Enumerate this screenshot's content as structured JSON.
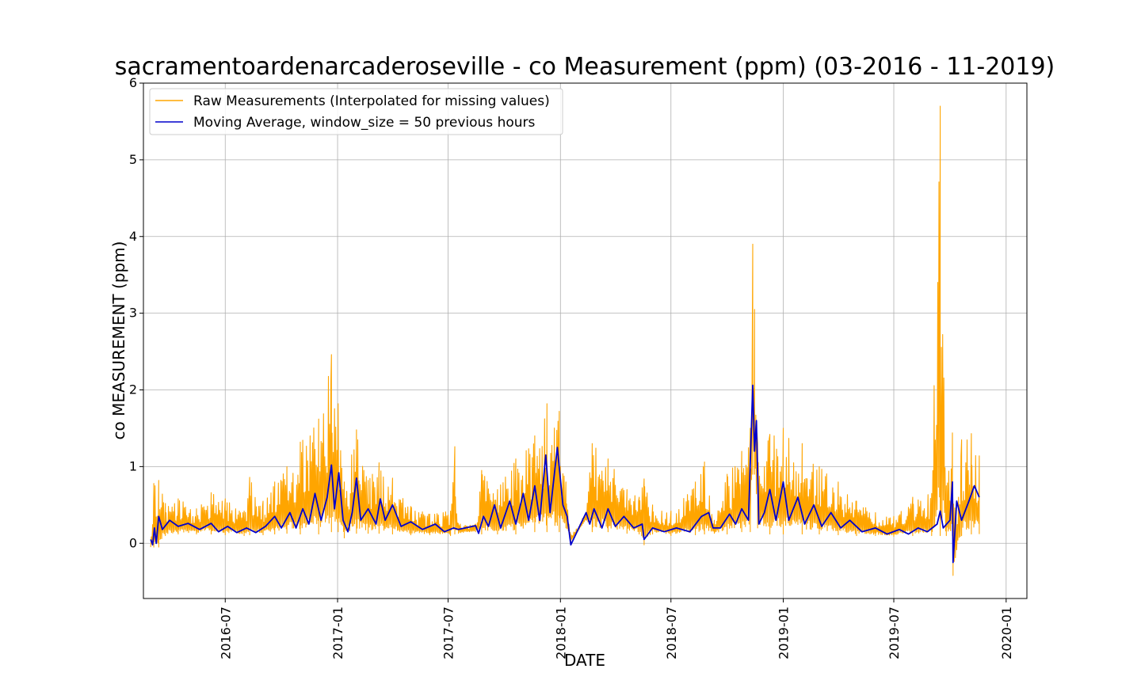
{
  "chart_data": {
    "type": "line",
    "title": "sacramentoardenarcaderoseville - co Measurement (ppm) (03-2016 - 11-2019)",
    "xlabel": "DATE",
    "ylabel": "co MEASUREMENT (ppm)",
    "xlim": [
      "2016-02-18",
      "2020-02-04"
    ],
    "ylim": [
      -0.72,
      6.0
    ],
    "x_ticks": [
      "2016-07",
      "2017-01",
      "2017-07",
      "2018-01",
      "2018-07",
      "2019-01",
      "2019-07",
      "2020-01"
    ],
    "y_ticks": [
      "0",
      "1",
      "2",
      "3",
      "4",
      "5",
      "6"
    ],
    "y_tick_values": [
      0,
      1,
      2,
      3,
      4,
      5,
      6
    ],
    "grid": true,
    "legend_position": "top-left",
    "series": [
      {
        "name": "Raw Measurements (Interpolated for missing values)",
        "color": "#FFA500",
        "envelope": [
          {
            "x": "2016-03-01",
            "low": -0.05,
            "high": 0.1
          },
          {
            "x": "2016-03-06",
            "low": -0.05,
            "high": 0.78
          },
          {
            "x": "2016-03-14",
            "low": -0.05,
            "high": 0.82
          },
          {
            "x": "2016-03-25",
            "low": 0.1,
            "high": 0.52
          },
          {
            "x": "2016-04-15",
            "low": 0.12,
            "high": 0.58
          },
          {
            "x": "2016-05-15",
            "low": 0.12,
            "high": 0.45
          },
          {
            "x": "2016-06-08",
            "low": 0.12,
            "high": 0.66
          },
          {
            "x": "2016-07-01",
            "low": 0.11,
            "high": 0.58
          },
          {
            "x": "2016-08-01",
            "low": 0.1,
            "high": 0.42
          },
          {
            "x": "2016-08-10",
            "low": 0.11,
            "high": 0.86
          },
          {
            "x": "2016-09-01",
            "low": 0.11,
            "high": 0.55
          },
          {
            "x": "2016-09-20",
            "low": 0.12,
            "high": 0.8
          },
          {
            "x": "2016-10-10",
            "low": 0.13,
            "high": 1.0
          },
          {
            "x": "2016-11-01",
            "low": 0.12,
            "high": 1.32
          },
          {
            "x": "2016-12-01",
            "low": 0.12,
            "high": 1.62
          },
          {
            "x": "2016-12-22",
            "low": 0.15,
            "high": 2.46
          },
          {
            "x": "2017-01-02",
            "low": 0.15,
            "high": 1.82
          },
          {
            "x": "2017-01-12",
            "low": 0.07,
            "high": 0.8
          },
          {
            "x": "2017-02-01",
            "low": 0.13,
            "high": 1.48
          },
          {
            "x": "2017-02-20",
            "low": 0.13,
            "high": 0.82
          },
          {
            "x": "2017-03-10",
            "low": 0.13,
            "high": 1.05
          },
          {
            "x": "2017-04-01",
            "low": 0.12,
            "high": 0.85
          },
          {
            "x": "2017-05-01",
            "low": 0.11,
            "high": 0.48
          },
          {
            "x": "2017-06-01",
            "low": 0.11,
            "high": 0.38
          },
          {
            "x": "2017-07-05",
            "low": 0.1,
            "high": 0.42
          },
          {
            "x": "2017-07-12",
            "low": 0.12,
            "high": 1.26
          },
          {
            "x": "2017-07-18",
            "low": 0.13,
            "high": 0.25
          },
          {
            "x": "2017-08-15",
            "low": 0.15,
            "high": 0.25
          },
          {
            "x": "2017-08-25",
            "low": 0.12,
            "high": 0.95
          },
          {
            "x": "2017-09-20",
            "low": 0.12,
            "high": 0.7
          },
          {
            "x": "2017-10-20",
            "low": 0.12,
            "high": 1.1
          },
          {
            "x": "2017-11-20",
            "low": 0.15,
            "high": 1.4
          },
          {
            "x": "2017-12-10",
            "low": 0.15,
            "high": 1.82
          },
          {
            "x": "2017-12-30",
            "low": 0.15,
            "high": 1.72
          },
          {
            "x": "2018-01-10",
            "low": 0.2,
            "high": 0.8
          },
          {
            "x": "2018-01-18",
            "low": 0.02,
            "high": 0.1
          },
          {
            "x": "2018-02-12",
            "low": 0.3,
            "high": 0.4
          },
          {
            "x": "2018-02-22",
            "low": 0.15,
            "high": 1.3
          },
          {
            "x": "2018-03-20",
            "low": 0.15,
            "high": 1.1
          },
          {
            "x": "2018-04-20",
            "low": 0.13,
            "high": 0.7
          },
          {
            "x": "2018-05-10",
            "low": 0.12,
            "high": 0.6
          },
          {
            "x": "2018-05-18",
            "low": -0.02,
            "high": 0.84
          },
          {
            "x": "2018-06-01",
            "low": 0.12,
            "high": 0.5
          },
          {
            "x": "2018-07-01",
            "low": 0.1,
            "high": 0.42
          },
          {
            "x": "2018-08-10",
            "low": 0.11,
            "high": 0.8
          },
          {
            "x": "2018-08-25",
            "low": 0.12,
            "high": 1.06
          },
          {
            "x": "2018-09-10",
            "low": 0.13,
            "high": 0.3
          },
          {
            "x": "2018-10-01",
            "low": 0.12,
            "high": 0.9
          },
          {
            "x": "2018-10-25",
            "low": 0.15,
            "high": 1.2
          },
          {
            "x": "2018-11-08",
            "low": 0.15,
            "high": 1.5
          },
          {
            "x": "2018-11-12",
            "low": 0.9,
            "high": 3.9
          },
          {
            "x": "2018-11-15",
            "low": 0.9,
            "high": 3.05
          },
          {
            "x": "2018-11-20",
            "low": 0.2,
            "high": 1.3
          },
          {
            "x": "2018-12-10",
            "low": 0.12,
            "high": 1.42
          },
          {
            "x": "2019-01-01",
            "low": 0.12,
            "high": 1.5
          },
          {
            "x": "2019-02-01",
            "low": 0.12,
            "high": 1.3
          },
          {
            "x": "2019-03-01",
            "low": 0.12,
            "high": 1.0
          },
          {
            "x": "2019-04-01",
            "low": 0.11,
            "high": 0.8
          },
          {
            "x": "2019-05-01",
            "low": 0.1,
            "high": 0.55
          },
          {
            "x": "2019-06-01",
            "low": 0.1,
            "high": 0.4
          },
          {
            "x": "2019-07-01",
            "low": 0.09,
            "high": 0.35
          },
          {
            "x": "2019-08-01",
            "low": 0.1,
            "high": 0.6
          },
          {
            "x": "2019-09-01",
            "low": 0.1,
            "high": 0.65
          },
          {
            "x": "2019-09-15",
            "low": 0.1,
            "high": 5.7
          },
          {
            "x": "2019-09-25",
            "low": 0.1,
            "high": 0.75
          },
          {
            "x": "2019-10-05",
            "low": 0.1,
            "high": 1.44
          },
          {
            "x": "2019-10-06",
            "low": -0.42,
            "high": 0.5
          },
          {
            "x": "2019-10-20",
            "low": 0.1,
            "high": 1.35
          },
          {
            "x": "2019-11-05",
            "low": 0.12,
            "high": 1.43
          },
          {
            "x": "2019-11-18",
            "low": 0.12,
            "high": 1.14
          }
        ]
      },
      {
        "name": "Moving Average, window_size = 50 previous hours",
        "color": "#0000CC",
        "points": [
          {
            "x": "2016-03-01",
            "y": 0.05
          },
          {
            "x": "2016-03-04",
            "y": -0.02
          },
          {
            "x": "2016-03-07",
            "y": 0.2
          },
          {
            "x": "2016-03-10",
            "y": 0.0
          },
          {
            "x": "2016-03-14",
            "y": 0.35
          },
          {
            "x": "2016-03-20",
            "y": 0.18
          },
          {
            "x": "2016-04-01",
            "y": 0.3
          },
          {
            "x": "2016-04-15",
            "y": 0.22
          },
          {
            "x": "2016-05-01",
            "y": 0.26
          },
          {
            "x": "2016-05-20",
            "y": 0.18
          },
          {
            "x": "2016-06-08",
            "y": 0.26
          },
          {
            "x": "2016-06-20",
            "y": 0.15
          },
          {
            "x": "2016-07-05",
            "y": 0.22
          },
          {
            "x": "2016-07-20",
            "y": 0.14
          },
          {
            "x": "2016-08-05",
            "y": 0.2
          },
          {
            "x": "2016-08-20",
            "y": 0.14
          },
          {
            "x": "2016-09-05",
            "y": 0.22
          },
          {
            "x": "2016-09-20",
            "y": 0.35
          },
          {
            "x": "2016-10-01",
            "y": 0.2
          },
          {
            "x": "2016-10-15",
            "y": 0.4
          },
          {
            "x": "2016-10-25",
            "y": 0.2
          },
          {
            "x": "2016-11-05",
            "y": 0.45
          },
          {
            "x": "2016-11-15",
            "y": 0.25
          },
          {
            "x": "2016-11-25",
            "y": 0.65
          },
          {
            "x": "2016-12-05",
            "y": 0.3
          },
          {
            "x": "2016-12-15",
            "y": 0.6
          },
          {
            "x": "2016-12-22",
            "y": 1.02
          },
          {
            "x": "2016-12-27",
            "y": 0.45
          },
          {
            "x": "2017-01-03",
            "y": 0.92
          },
          {
            "x": "2017-01-10",
            "y": 0.3
          },
          {
            "x": "2017-01-18",
            "y": 0.15
          },
          {
            "x": "2017-01-25",
            "y": 0.4
          },
          {
            "x": "2017-02-01",
            "y": 0.85
          },
          {
            "x": "2017-02-08",
            "y": 0.3
          },
          {
            "x": "2017-02-20",
            "y": 0.45
          },
          {
            "x": "2017-03-05",
            "y": 0.25
          },
          {
            "x": "2017-03-12",
            "y": 0.58
          },
          {
            "x": "2017-03-20",
            "y": 0.3
          },
          {
            "x": "2017-04-01",
            "y": 0.5
          },
          {
            "x": "2017-04-15",
            "y": 0.22
          },
          {
            "x": "2017-05-01",
            "y": 0.28
          },
          {
            "x": "2017-05-20",
            "y": 0.18
          },
          {
            "x": "2017-06-10",
            "y": 0.25
          },
          {
            "x": "2017-06-25",
            "y": 0.15
          },
          {
            "x": "2017-07-10",
            "y": 0.2
          },
          {
            "x": "2017-07-18",
            "y": 0.18
          },
          {
            "x": "2017-08-15",
            "y": 0.23
          },
          {
            "x": "2017-08-20",
            "y": 0.13
          },
          {
            "x": "2017-08-28",
            "y": 0.35
          },
          {
            "x": "2017-09-05",
            "y": 0.22
          },
          {
            "x": "2017-09-15",
            "y": 0.5
          },
          {
            "x": "2017-09-25",
            "y": 0.2
          },
          {
            "x": "2017-10-10",
            "y": 0.55
          },
          {
            "x": "2017-10-20",
            "y": 0.25
          },
          {
            "x": "2017-11-01",
            "y": 0.65
          },
          {
            "x": "2017-11-10",
            "y": 0.3
          },
          {
            "x": "2017-11-20",
            "y": 0.75
          },
          {
            "x": "2017-11-28",
            "y": 0.3
          },
          {
            "x": "2017-12-08",
            "y": 1.15
          },
          {
            "x": "2017-12-15",
            "y": 0.4
          },
          {
            "x": "2017-12-27",
            "y": 1.25
          },
          {
            "x": "2018-01-05",
            "y": 0.5
          },
          {
            "x": "2018-01-12",
            "y": 0.35
          },
          {
            "x": "2018-01-18",
            "y": -0.02
          },
          {
            "x": "2018-02-12",
            "y": 0.4
          },
          {
            "x": "2018-02-18",
            "y": 0.25
          },
          {
            "x": "2018-02-25",
            "y": 0.45
          },
          {
            "x": "2018-03-10",
            "y": 0.2
          },
          {
            "x": "2018-03-20",
            "y": 0.45
          },
          {
            "x": "2018-04-01",
            "y": 0.22
          },
          {
            "x": "2018-04-15",
            "y": 0.35
          },
          {
            "x": "2018-05-01",
            "y": 0.2
          },
          {
            "x": "2018-05-15",
            "y": 0.25
          },
          {
            "x": "2018-05-18",
            "y": 0.05
          },
          {
            "x": "2018-06-01",
            "y": 0.2
          },
          {
            "x": "2018-06-20",
            "y": 0.15
          },
          {
            "x": "2018-07-10",
            "y": 0.2
          },
          {
            "x": "2018-08-01",
            "y": 0.15
          },
          {
            "x": "2018-08-20",
            "y": 0.35
          },
          {
            "x": "2018-09-01",
            "y": 0.4
          },
          {
            "x": "2018-09-08",
            "y": 0.2
          },
          {
            "x": "2018-09-20",
            "y": 0.2
          },
          {
            "x": "2018-10-05",
            "y": 0.38
          },
          {
            "x": "2018-10-15",
            "y": 0.25
          },
          {
            "x": "2018-10-25",
            "y": 0.45
          },
          {
            "x": "2018-11-05",
            "y": 0.3
          },
          {
            "x": "2018-11-12",
            "y": 2.06
          },
          {
            "x": "2018-11-15",
            "y": 1.2
          },
          {
            "x": "2018-11-18",
            "y": 1.6
          },
          {
            "x": "2018-11-22",
            "y": 0.25
          },
          {
            "x": "2018-12-01",
            "y": 0.4
          },
          {
            "x": "2018-12-10",
            "y": 0.7
          },
          {
            "x": "2018-12-20",
            "y": 0.3
          },
          {
            "x": "2019-01-01",
            "y": 0.8
          },
          {
            "x": "2019-01-10",
            "y": 0.3
          },
          {
            "x": "2019-01-25",
            "y": 0.6
          },
          {
            "x": "2019-02-05",
            "y": 0.25
          },
          {
            "x": "2019-02-20",
            "y": 0.5
          },
          {
            "x": "2019-03-05",
            "y": 0.22
          },
          {
            "x": "2019-03-20",
            "y": 0.4
          },
          {
            "x": "2019-04-05",
            "y": 0.2
          },
          {
            "x": "2019-04-20",
            "y": 0.3
          },
          {
            "x": "2019-05-10",
            "y": 0.15
          },
          {
            "x": "2019-06-01",
            "y": 0.2
          },
          {
            "x": "2019-06-20",
            "y": 0.12
          },
          {
            "x": "2019-07-10",
            "y": 0.18
          },
          {
            "x": "2019-07-25",
            "y": 0.12
          },
          {
            "x": "2019-08-10",
            "y": 0.2
          },
          {
            "x": "2019-08-25",
            "y": 0.15
          },
          {
            "x": "2019-09-10",
            "y": 0.25
          },
          {
            "x": "2019-09-15",
            "y": 0.42
          },
          {
            "x": "2019-09-20",
            "y": 0.2
          },
          {
            "x": "2019-10-01",
            "y": 0.3
          },
          {
            "x": "2019-10-05",
            "y": 0.8
          },
          {
            "x": "2019-10-06",
            "y": -0.25
          },
          {
            "x": "2019-10-12",
            "y": 0.55
          },
          {
            "x": "2019-10-20",
            "y": 0.3
          },
          {
            "x": "2019-11-01",
            "y": 0.55
          },
          {
            "x": "2019-11-10",
            "y": 0.75
          },
          {
            "x": "2019-11-18",
            "y": 0.6
          }
        ]
      }
    ]
  }
}
